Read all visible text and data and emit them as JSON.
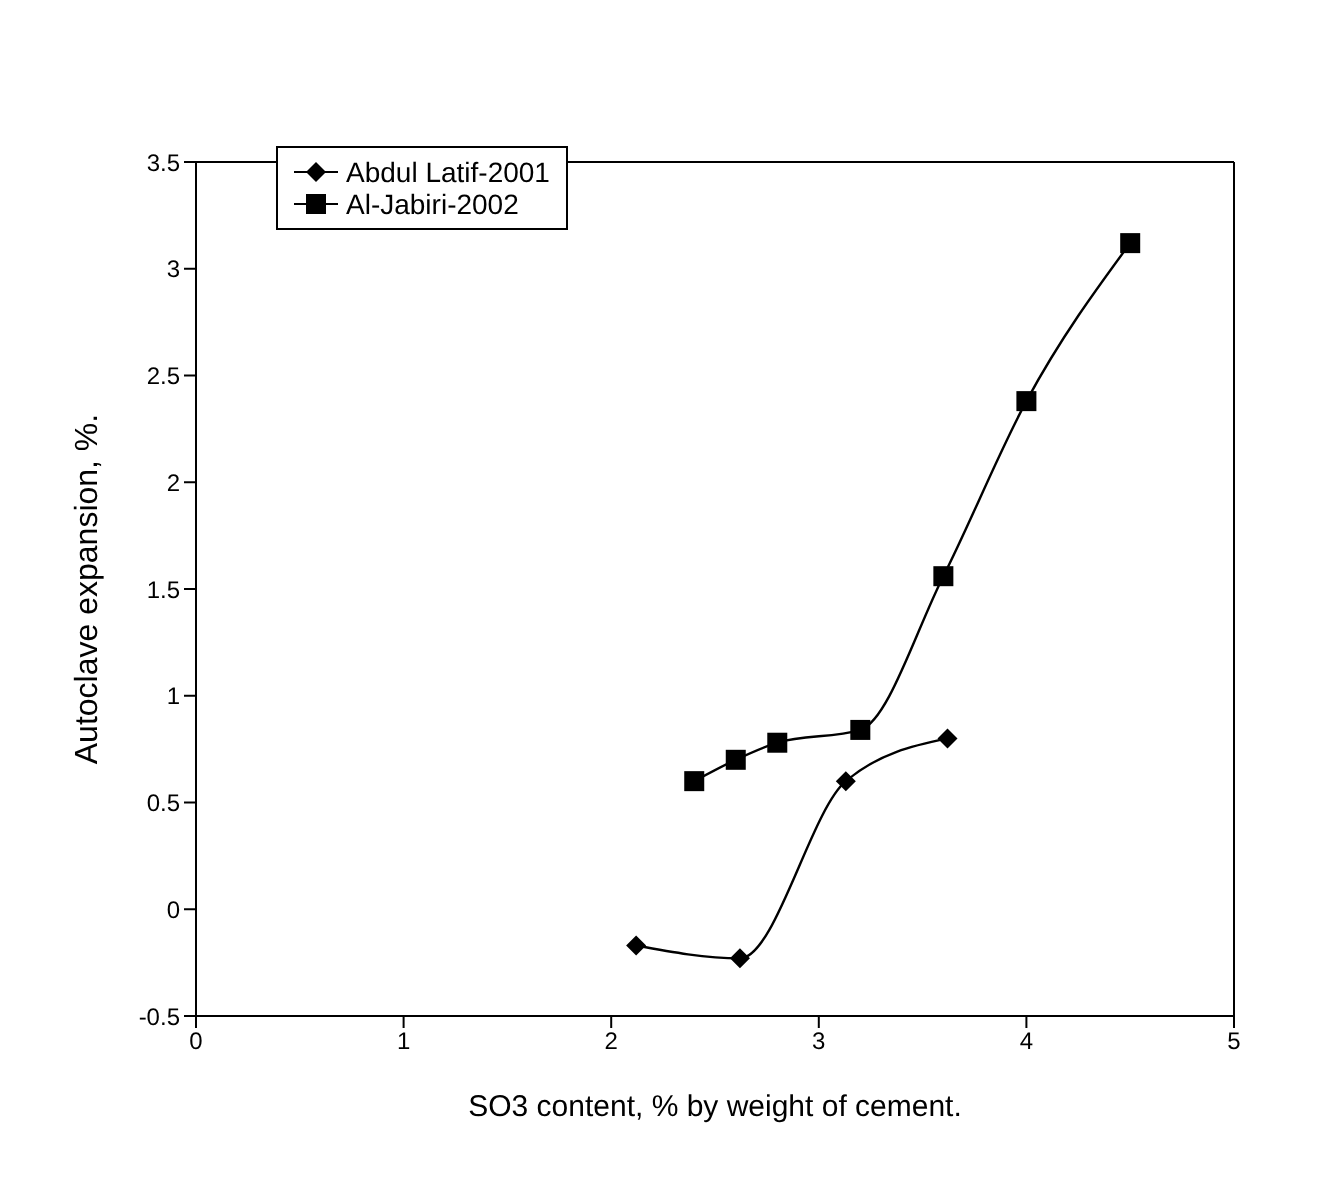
{
  "chart_data": {
    "type": "line",
    "xlabel": "SO3 content, % by weight of cement.",
    "ylabel": "Autoclave expansion, %.",
    "xlim": [
      0,
      5
    ],
    "xticks": [
      0,
      1,
      2,
      3,
      4,
      5
    ],
    "ylim": [
      -0.5,
      3.5
    ],
    "yticks": [
      -0.5,
      0,
      0.5,
      1,
      1.5,
      2,
      2.5,
      3,
      3.5
    ],
    "grid": false,
    "legend": "top left",
    "line_style": "solid",
    "series": [
      {
        "name": "Abdul Latif-2001",
        "color": "#000000",
        "marker": "diamond",
        "x": [
          2.12,
          2.62,
          3.13,
          3.62
        ],
        "values": [
          -0.17,
          -0.23,
          0.6,
          0.8
        ]
      },
      {
        "name": "Al-Jabiri-2002",
        "color": "#000000",
        "marker": "square",
        "x": [
          2.4,
          2.6,
          2.8,
          3.2,
          3.6,
          4.0,
          4.5
        ],
        "values": [
          0.6,
          0.7,
          0.78,
          0.84,
          1.56,
          2.38,
          3.12
        ]
      }
    ]
  }
}
